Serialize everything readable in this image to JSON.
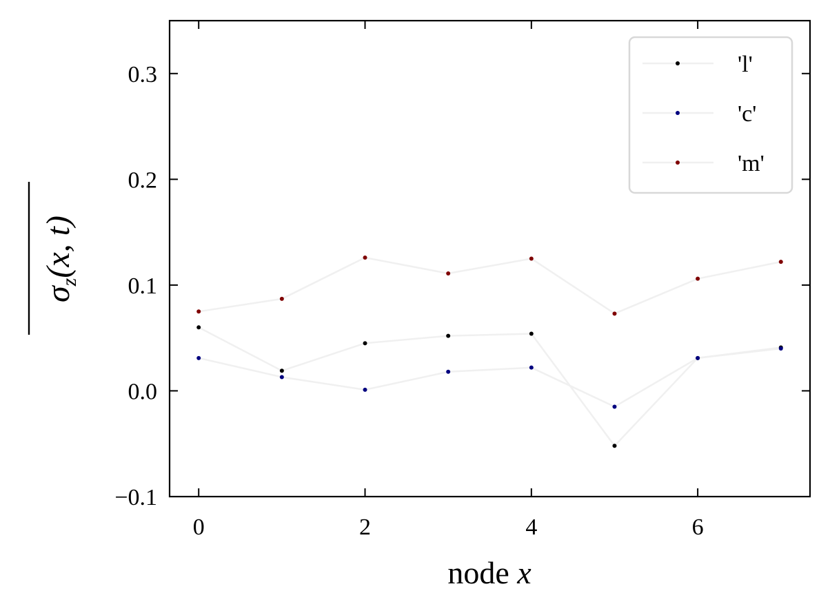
{
  "chart_data": {
    "type": "line",
    "title": "",
    "xlabel_text": "node ",
    "xlabel_var": "x",
    "ylabel_sigma": "σ",
    "ylabel_sub": "z",
    "ylabel_args": "(x, t)",
    "x": [
      0,
      1,
      2,
      3,
      4,
      5,
      6,
      7
    ],
    "xlim": [
      -0.35,
      7.35
    ],
    "ylim": [
      -0.1,
      0.35
    ],
    "xticks": [
      0,
      2,
      4,
      6
    ],
    "xtick_labels": [
      "0",
      "2",
      "4",
      "6"
    ],
    "yticks": [
      -0.1,
      0.0,
      0.1,
      0.2,
      0.3
    ],
    "ytick_labels": [
      "−0.1",
      "0.0",
      "0.1",
      "0.2",
      "0.3"
    ],
    "grid": false,
    "legend_position": "top-right",
    "line_color": "#f0f0f0",
    "series": [
      {
        "name": "'l'",
        "color": "#000000",
        "values": [
          0.06,
          0.019,
          0.045,
          0.052,
          0.054,
          -0.052,
          0.031,
          0.041
        ]
      },
      {
        "name": "'c'",
        "color": "#00007f",
        "values": [
          0.031,
          0.013,
          0.001,
          0.018,
          0.022,
          -0.015,
          0.031,
          0.04
        ]
      },
      {
        "name": "'m'",
        "color": "#7f0000",
        "values": [
          0.075,
          0.087,
          0.126,
          0.111,
          0.125,
          0.073,
          0.106,
          0.122
        ]
      }
    ]
  }
}
